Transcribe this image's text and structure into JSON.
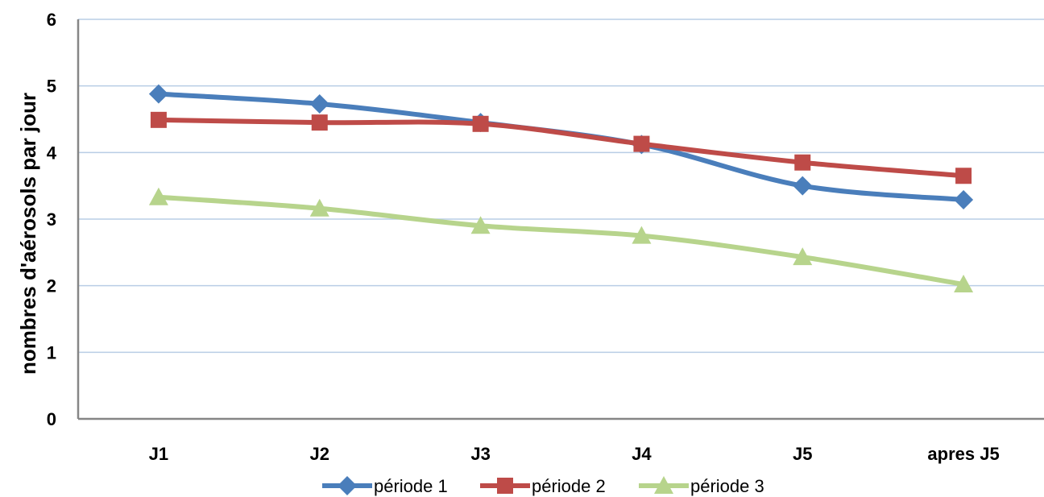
{
  "chart_data": {
    "type": "line",
    "title": "",
    "xlabel": "",
    "ylabel": "nombres d'aérosols par jour",
    "categories": [
      "J1",
      "J2",
      "J3",
      "J4",
      "J5",
      "apres J5"
    ],
    "ylim": [
      0,
      6
    ],
    "yticks": [
      "0",
      "1",
      "2",
      "3",
      "4",
      "5",
      "6"
    ],
    "grid": "horizontal",
    "legend_position": "bottom",
    "series": [
      {
        "name": "période 1",
        "values": [
          4.88,
          4.73,
          4.45,
          4.12,
          3.5,
          3.29
        ],
        "color": "#4a7ebb",
        "marker": "diamond"
      },
      {
        "name": "période 2",
        "values": [
          4.49,
          4.45,
          4.43,
          4.13,
          3.85,
          3.65
        ],
        "color": "#be4b48",
        "marker": "square"
      },
      {
        "name": "période 3",
        "values": [
          3.33,
          3.16,
          2.9,
          2.75,
          2.43,
          2.02
        ],
        "color": "#b7d48c",
        "marker": "triangle"
      }
    ]
  }
}
